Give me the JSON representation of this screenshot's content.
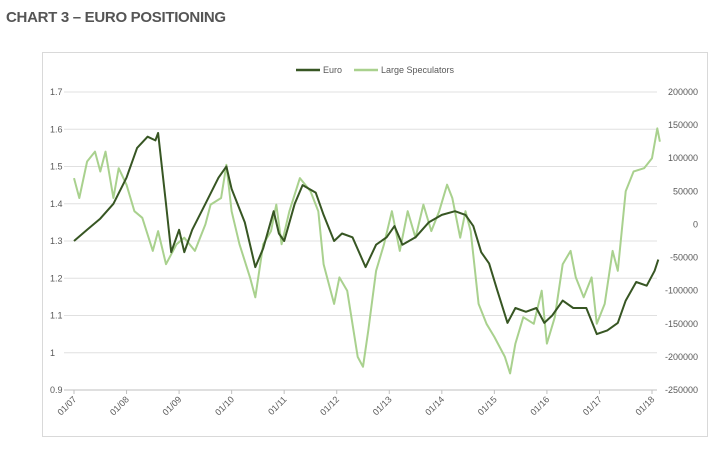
{
  "title": "CHART 3 – EURO POSITIONING",
  "chart_data": {
    "type": "line",
    "title": "",
    "legend": [
      "Euro",
      "Large Speculators"
    ],
    "legend_position": "top",
    "colors": {
      "Euro": "#375623",
      "Large Speculators": "#a9d18e",
      "grid": "#d9d9d9"
    },
    "x_ticks": [
      "01/07",
      "01/08",
      "01/09",
      "01/10",
      "01/11",
      "01/12",
      "01/13",
      "01/14",
      "01/15",
      "01/16",
      "01/17",
      "01/18"
    ],
    "xlim": [
      2007,
      2018
    ],
    "y_left": {
      "ticks": [
        "0.9",
        "1",
        "1.1",
        "1.2",
        "1.3",
        "1.4",
        "1.5",
        "1.6",
        "1.7"
      ],
      "range": [
        0.9,
        1.7
      ]
    },
    "y_right": {
      "ticks": [
        "-250000",
        "-200000",
        "-150000",
        "-100000",
        "-50000",
        "0",
        "50000",
        "100000",
        "150000",
        "200000"
      ],
      "range": [
        -250000,
        200000
      ]
    },
    "series": [
      {
        "name": "Euro",
        "axis": "left",
        "x": [
          2007.0,
          2007.25,
          2007.5,
          2007.75,
          2008.0,
          2008.2,
          2008.4,
          2008.55,
          2008.6,
          2008.75,
          2008.85,
          2009.0,
          2009.1,
          2009.25,
          2009.5,
          2009.75,
          2009.9,
          2010.0,
          2010.25,
          2010.45,
          2010.6,
          2010.8,
          2010.9,
          2011.0,
          2011.2,
          2011.35,
          2011.6,
          2011.75,
          2011.95,
          2012.1,
          2012.3,
          2012.55,
          2012.75,
          2012.95,
          2013.1,
          2013.25,
          2013.5,
          2013.75,
          2014.0,
          2014.25,
          2014.45,
          2014.6,
          2014.75,
          2014.9,
          2015.05,
          2015.25,
          2015.4,
          2015.6,
          2015.8,
          2015.95,
          2016.1,
          2016.3,
          2016.5,
          2016.75,
          2016.95,
          2017.15,
          2017.35,
          2017.5,
          2017.7,
          2017.9,
          2018.05,
          2018.12
        ],
        "values": [
          1.3,
          1.33,
          1.36,
          1.4,
          1.47,
          1.55,
          1.58,
          1.57,
          1.59,
          1.4,
          1.27,
          1.33,
          1.27,
          1.33,
          1.4,
          1.47,
          1.5,
          1.44,
          1.35,
          1.23,
          1.28,
          1.38,
          1.32,
          1.3,
          1.4,
          1.45,
          1.43,
          1.37,
          1.3,
          1.32,
          1.31,
          1.23,
          1.29,
          1.31,
          1.34,
          1.29,
          1.31,
          1.35,
          1.37,
          1.38,
          1.37,
          1.34,
          1.27,
          1.24,
          1.17,
          1.08,
          1.12,
          1.11,
          1.12,
          1.08,
          1.1,
          1.14,
          1.12,
          1.12,
          1.05,
          1.06,
          1.08,
          1.14,
          1.19,
          1.18,
          1.22,
          1.25
        ]
      },
      {
        "name": "Large Speculators",
        "axis": "right",
        "x": [
          2007.0,
          2007.1,
          2007.25,
          2007.4,
          2007.5,
          2007.6,
          2007.75,
          2007.85,
          2008.0,
          2008.15,
          2008.3,
          2008.5,
          2008.6,
          2008.75,
          2008.95,
          2009.1,
          2009.3,
          2009.5,
          2009.6,
          2009.8,
          2009.9,
          2010.0,
          2010.15,
          2010.35,
          2010.45,
          2010.6,
          2010.75,
          2010.85,
          2010.95,
          2011.1,
          2011.3,
          2011.5,
          2011.65,
          2011.75,
          2011.95,
          2012.05,
          2012.2,
          2012.4,
          2012.5,
          2012.6,
          2012.75,
          2012.9,
          2013.05,
          2013.2,
          2013.35,
          2013.5,
          2013.65,
          2013.8,
          2013.95,
          2014.1,
          2014.2,
          2014.35,
          2014.45,
          2014.55,
          2014.7,
          2014.85,
          2015.0,
          2015.2,
          2015.3,
          2015.4,
          2015.55,
          2015.75,
          2015.9,
          2016.0,
          2016.15,
          2016.3,
          2016.45,
          2016.55,
          2016.7,
          2016.85,
          2016.95,
          2017.1,
          2017.25,
          2017.35,
          2017.5,
          2017.65,
          2017.85,
          2018.0,
          2018.1,
          2018.15
        ],
        "values": [
          70000,
          40000,
          95000,
          110000,
          80000,
          110000,
          40000,
          85000,
          60000,
          20000,
          10000,
          -40000,
          -10000,
          -60000,
          -30000,
          -20000,
          -40000,
          0,
          30000,
          40000,
          90000,
          20000,
          -30000,
          -80000,
          -110000,
          -30000,
          -10000,
          30000,
          -30000,
          20000,
          70000,
          50000,
          20000,
          -60000,
          -120000,
          -80000,
          -100000,
          -200000,
          -215000,
          -160000,
          -70000,
          -30000,
          20000,
          -40000,
          20000,
          -20000,
          30000,
          -10000,
          20000,
          60000,
          40000,
          -20000,
          20000,
          -10000,
          -120000,
          -150000,
          -170000,
          -200000,
          -225000,
          -180000,
          -140000,
          -150000,
          -100000,
          -180000,
          -140000,
          -60000,
          -40000,
          -80000,
          -110000,
          -80000,
          -150000,
          -120000,
          -40000,
          -70000,
          50000,
          80000,
          85000,
          100000,
          145000,
          125000
        ]
      }
    ]
  }
}
